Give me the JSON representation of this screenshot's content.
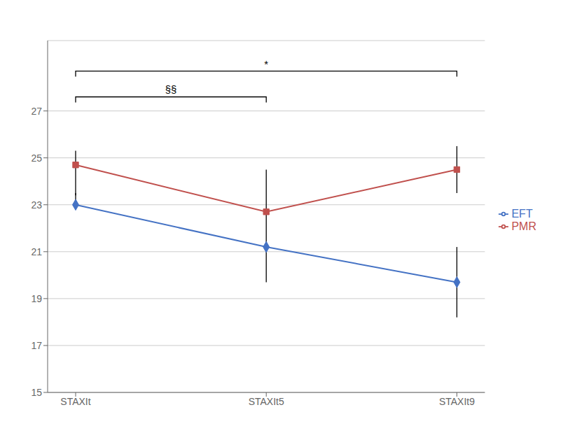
{
  "chart_data": {
    "type": "line",
    "categories": [
      "STAXIt",
      "STAXIt5",
      "STAXIt9"
    ],
    "series": [
      {
        "name": "EFT",
        "color": "#4472C4",
        "marker": "diamond",
        "values": [
          23.0,
          21.2,
          19.7
        ],
        "error_upper": [
          0.5,
          1.5,
          1.5
        ],
        "error_lower": [
          0.0,
          1.5,
          1.5
        ]
      },
      {
        "name": "PMR",
        "color": "#C0504D",
        "marker": "square",
        "values": [
          24.7,
          22.7,
          24.5
        ],
        "error_upper": [
          0.6,
          1.8,
          1.0
        ],
        "error_lower": [
          1.3,
          0.0,
          1.0
        ]
      }
    ],
    "ylim": [
      15,
      30
    ],
    "yticks": [
      15,
      17,
      19,
      21,
      23,
      25,
      27
    ],
    "grid": true,
    "legend": "right",
    "annotations": [
      {
        "text": "§§",
        "x": [
          "STAXIt",
          "STAXIt5"
        ],
        "y": 27.6
      },
      {
        "text": "*",
        "x": [
          "STAXIt",
          "STAXIt9"
        ],
        "y": 28.7
      }
    ]
  }
}
